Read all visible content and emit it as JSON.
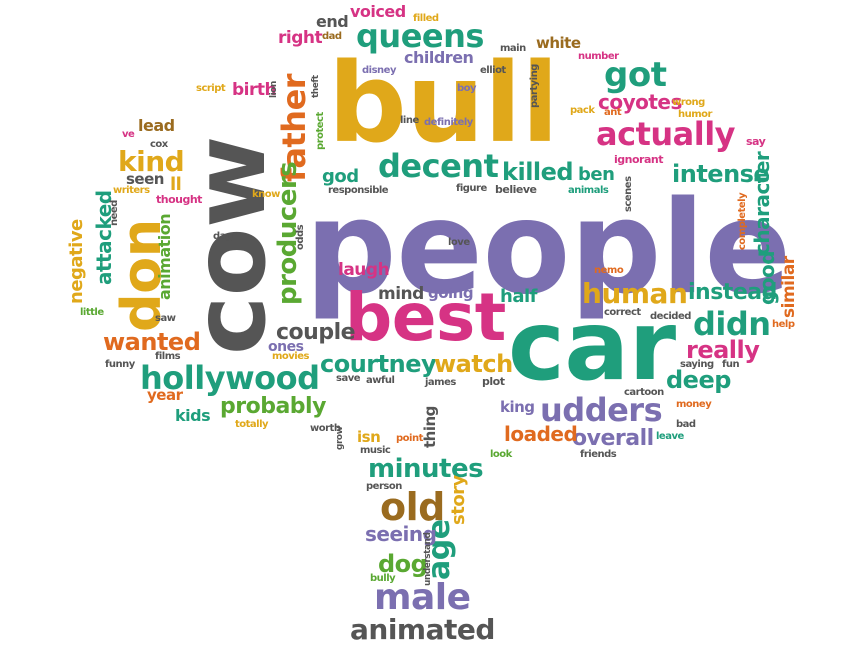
{
  "colors": {
    "purple": "#7b6fb0",
    "gold": "#e0a81a",
    "teal": "#1f9e7c",
    "magenta": "#d63384",
    "gray": "#555555",
    "green": "#5aa832",
    "orange": "#e06a1f",
    "red": "#c94a3a"
  },
  "words": {
    "people": "people",
    "bull": "bull",
    "cow": "cow",
    "car": "car",
    "best": "best",
    "don": "don",
    "udders": "udders",
    "hollywood": "hollywood",
    "queens": "queens",
    "decent": "decent",
    "actually": "actually",
    "got": "got",
    "human": "human",
    "didn": "didn",
    "father": "father",
    "producers": "producers",
    "minutes": "minutes",
    "old": "old",
    "male": "male",
    "animated": "animated",
    "courtney": "courtney",
    "watch": "watch",
    "probably": "probably",
    "overall": "overall",
    "intense": "intense",
    "killed": "killed",
    "kind": "kind",
    "wanted": "wanted",
    "deep": "deep",
    "really": "really",
    "couple": "couple",
    "coyotes": "coyotes",
    "character": "character",
    "good": "good",
    "instead": "instead",
    "loaded": "loaded",
    "age": "age",
    "seeing": "seeing",
    "dog": "dog",
    "story": "story",
    "negative": "negative",
    "attacked": "attacked",
    "animation": "animation",
    "half": "half",
    "laugh": "laugh",
    "mind": "mind",
    "going": "going",
    "god": "god",
    "ben": "ben",
    "voiced": "voiced",
    "end": "end",
    "right": "right",
    "children": "children",
    "white": "white",
    "birth": "birth",
    "lead": "lead",
    "seen": "seen",
    "ll": "ll",
    "kids": "kids",
    "year": "year",
    "ones": "ones",
    "similar": "similar",
    "king": "king",
    "isn": "isn",
    "thing": "thing",
    "dad": "dad",
    "filled": "filled",
    "disney": "disney",
    "main": "main",
    "elliot": "elliot",
    "boy": "boy",
    "partying": "partying",
    "number": "number",
    "pack": "pack",
    "ant": "ant",
    "humor": "humor",
    "wrong": "wrong",
    "ignorant": "ignorant",
    "say": "say",
    "script": "script",
    "lion": "lion",
    "theft": "theft",
    "protect": "protect",
    "line": "line",
    "definitely": "definitely",
    "figure": "figure",
    "believe": "believe",
    "responsible": "responsible",
    "animals": "animals",
    "scenes": "scenes",
    "completely": "completely",
    "ve": "ve",
    "cox": "cox",
    "writers": "writers",
    "thought": "thought",
    "need": "need",
    "know": "know",
    "dag": "dag",
    "odds": "odds",
    "love": "love",
    "nemo": "nemo",
    "little": "little",
    "saw": "saw",
    "funny": "funny",
    "films": "films",
    "movies": "movies",
    "save": "save",
    "awful": "awful",
    "james": "james",
    "plot": "plot",
    "correct": "correct",
    "decided": "decided",
    "help": "help",
    "saying": "saying",
    "fun": "fun",
    "cartoon": "cartoon",
    "money": "money",
    "bad": "bad",
    "leave": "leave",
    "totally": "totally",
    "worth": "worth",
    "grow": "grow",
    "point": "point",
    "music": "music",
    "look": "look",
    "friends": "friends",
    "person": "person",
    "understand": "understand",
    "bully": "bully"
  }
}
